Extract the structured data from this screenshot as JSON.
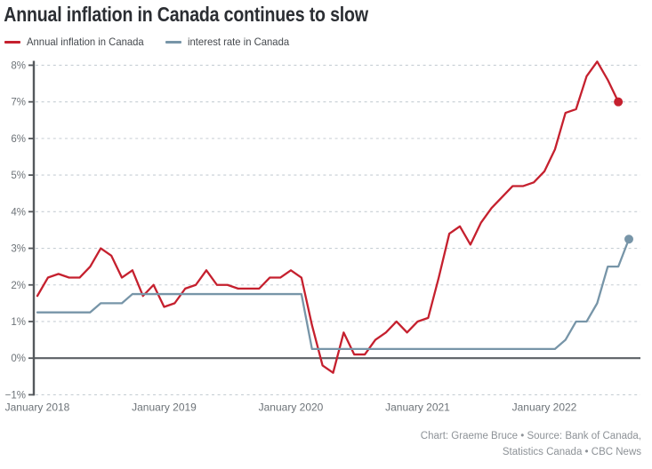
{
  "title": "Annual inflation in Canada continues to slow",
  "legend": [
    {
      "label": "Annual inflation in Canada",
      "color": "#c5202e"
    },
    {
      "label": "interest rate in Canada",
      "color": "#7795a8"
    }
  ],
  "footer": {
    "line1": "Chart: Graeme Bruce • Source: Bank of Canada,",
    "line2": "Statistics Canada • CBC News"
  },
  "colors": {
    "inflation_line": "#c5202e",
    "interest_rate_line": "#7795a8",
    "grid_dashed": "#c6ced4",
    "axis": "#54585c",
    "zero_line": "#5c6064",
    "tick_text": "#6d7378",
    "title_text": "#2b2e33",
    "footer_text": "#8d9297"
  },
  "chart_data": {
    "type": "line",
    "title": "Annual inflation in Canada continues to slow",
    "x_start": "January 2018",
    "x_interval": "monthly",
    "grid": "horizontal-dashed",
    "legend_position": "top-left",
    "x_axis": {
      "tick_indices": [
        0,
        12,
        24,
        36,
        48
      ],
      "tick_labels": [
        "January 2018",
        "January 2019",
        "January 2020",
        "January 2021",
        "January 2022"
      ]
    },
    "y_axis": {
      "min": -1,
      "max": 8,
      "unit": "%",
      "tick_values": [
        8,
        7,
        6,
        5,
        4,
        3,
        2,
        1,
        0,
        -1
      ],
      "tick_labels": [
        "8%",
        "7%",
        "6%",
        "5%",
        "4%",
        "3%",
        "2%",
        "1%",
        "0%",
        "−1%"
      ],
      "zero_baseline": true
    },
    "series": [
      {
        "name": "Annual inflation in Canada",
        "color": "#c5202e",
        "end_dot": true,
        "last_value": 7.0,
        "values": [
          1.7,
          2.2,
          2.3,
          2.2,
          2.2,
          2.5,
          3.0,
          2.8,
          2.2,
          2.4,
          1.7,
          2.0,
          1.4,
          1.5,
          1.9,
          2.0,
          2.4,
          2.0,
          2.0,
          1.9,
          1.9,
          1.9,
          2.2,
          2.2,
          2.4,
          2.2,
          0.9,
          -0.2,
          -0.4,
          0.7,
          0.1,
          0.1,
          0.5,
          0.7,
          1.0,
          0.7,
          1.0,
          1.1,
          2.2,
          3.4,
          3.6,
          3.1,
          3.7,
          4.1,
          4.4,
          4.7,
          4.7,
          4.8,
          5.1,
          5.7,
          6.7,
          6.8,
          7.7,
          8.1,
          7.6,
          7.0
        ]
      },
      {
        "name": "interest rate in Canada",
        "color": "#7795a8",
        "end_dot": true,
        "last_value": 3.25,
        "values": [
          1.25,
          1.25,
          1.25,
          1.25,
          1.25,
          1.25,
          1.5,
          1.5,
          1.5,
          1.75,
          1.75,
          1.75,
          1.75,
          1.75,
          1.75,
          1.75,
          1.75,
          1.75,
          1.75,
          1.75,
          1.75,
          1.75,
          1.75,
          1.75,
          1.75,
          1.75,
          0.25,
          0.25,
          0.25,
          0.25,
          0.25,
          0.25,
          0.25,
          0.25,
          0.25,
          0.25,
          0.25,
          0.25,
          0.25,
          0.25,
          0.25,
          0.25,
          0.25,
          0.25,
          0.25,
          0.25,
          0.25,
          0.25,
          0.25,
          0.25,
          0.5,
          1.0,
          1.0,
          1.5,
          2.5,
          2.5,
          3.25
        ]
      }
    ]
  }
}
